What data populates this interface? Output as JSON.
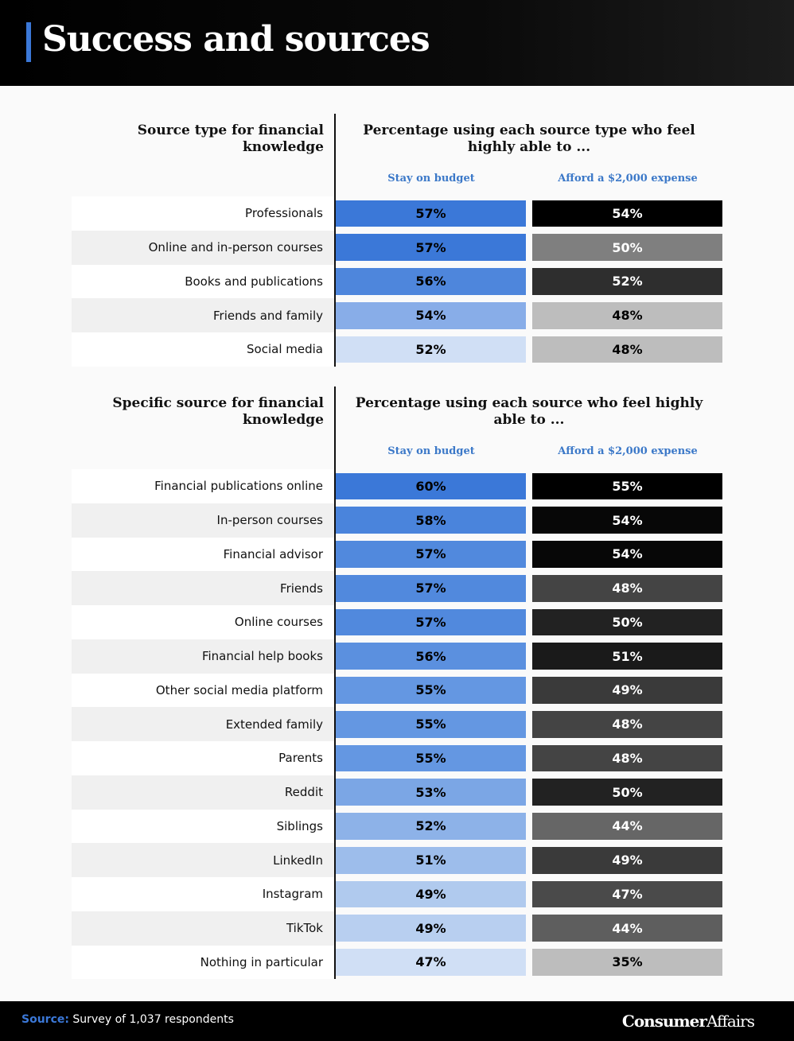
{
  "header": {
    "title": "Success and sources"
  },
  "sections": [
    {
      "label_header": "Source type for financial knowledge",
      "value_header": "Percentage using each source type who feel highly able to ...",
      "columns": [
        "Stay on budget",
        "Afford a $2,000 expense"
      ],
      "rows": [
        {
          "label": "Professionals",
          "cells": [
            {
              "text": "57%",
              "fill": "#3b78d8",
              "ink": "#000000"
            },
            {
              "text": "54%",
              "fill": "#000000",
              "ink": "#ffffff"
            }
          ]
        },
        {
          "label": "Online and in-person courses",
          "cells": [
            {
              "text": "57%",
              "fill": "#3b78d8",
              "ink": "#000000"
            },
            {
              "text": "50%",
              "fill": "#7f7f7f",
              "ink": "#ffffff"
            }
          ]
        },
        {
          "label": "Books and publications",
          "cells": [
            {
              "text": "56%",
              "fill": "#4e86dc",
              "ink": "#000000"
            },
            {
              "text": "52%",
              "fill": "#2e2e2e",
              "ink": "#ffffff"
            }
          ]
        },
        {
          "label": "Friends and family",
          "cells": [
            {
              "text": "54%",
              "fill": "#88ade8",
              "ink": "#000000"
            },
            {
              "text": "48%",
              "fill": "#bdbdbd",
              "ink": "#000000"
            }
          ]
        },
        {
          "label": "Social media",
          "cells": [
            {
              "text": "52%",
              "fill": "#d0dff5",
              "ink": "#000000"
            },
            {
              "text": "48%",
              "fill": "#bdbdbd",
              "ink": "#000000"
            }
          ]
        }
      ]
    },
    {
      "label_header": "Specific source for financial knowledge",
      "value_header": "Percentage using each source who feel highly able to ...",
      "columns": [
        "Stay on budget",
        "Afford a $2,000 expense"
      ],
      "rows": [
        {
          "label": "Financial publications online",
          "cells": [
            {
              "text": "60%",
              "fill": "#3b78d8",
              "ink": "#000000"
            },
            {
              "text": "55%",
              "fill": "#000000",
              "ink": "#ffffff"
            }
          ]
        },
        {
          "label": "In-person courses",
          "cells": [
            {
              "text": "58%",
              "fill": "#4a84dc",
              "ink": "#000000"
            },
            {
              "text": "54%",
              "fill": "#070707",
              "ink": "#ffffff"
            }
          ]
        },
        {
          "label": "Financial advisor",
          "cells": [
            {
              "text": "57%",
              "fill": "#5189dd",
              "ink": "#000000"
            },
            {
              "text": "54%",
              "fill": "#070707",
              "ink": "#ffffff"
            }
          ]
        },
        {
          "label": "Friends",
          "cells": [
            {
              "text": "57%",
              "fill": "#5189dd",
              "ink": "#000000"
            },
            {
              "text": "48%",
              "fill": "#444444",
              "ink": "#ffffff"
            }
          ]
        },
        {
          "label": "Online courses",
          "cells": [
            {
              "text": "57%",
              "fill": "#5189dd",
              "ink": "#000000"
            },
            {
              "text": "50%",
              "fill": "#222222",
              "ink": "#ffffff"
            }
          ]
        },
        {
          "label": "Financial help books",
          "cells": [
            {
              "text": "56%",
              "fill": "#5b90df",
              "ink": "#000000"
            },
            {
              "text": "51%",
              "fill": "#1a1a1a",
              "ink": "#ffffff"
            }
          ]
        },
        {
          "label": "Other social media platform",
          "cells": [
            {
              "text": "55%",
              "fill": "#6497e2",
              "ink": "#000000"
            },
            {
              "text": "49%",
              "fill": "#3a3a3a",
              "ink": "#ffffff"
            }
          ]
        },
        {
          "label": "Extended family",
          "cells": [
            {
              "text": "55%",
              "fill": "#6497e2",
              "ink": "#000000"
            },
            {
              "text": "48%",
              "fill": "#444444",
              "ink": "#ffffff"
            }
          ]
        },
        {
          "label": "Parents",
          "cells": [
            {
              "text": "55%",
              "fill": "#6497e2",
              "ink": "#000000"
            },
            {
              "text": "48%",
              "fill": "#444444",
              "ink": "#ffffff"
            }
          ]
        },
        {
          "label": "Reddit",
          "cells": [
            {
              "text": "53%",
              "fill": "#7ba6e5",
              "ink": "#000000"
            },
            {
              "text": "50%",
              "fill": "#222222",
              "ink": "#ffffff"
            }
          ]
        },
        {
          "label": "Siblings",
          "cells": [
            {
              "text": "52%",
              "fill": "#8db2e8",
              "ink": "#000000"
            },
            {
              "text": "44%",
              "fill": "#666666",
              "ink": "#ffffff"
            }
          ]
        },
        {
          "label": "LinkedIn",
          "cells": [
            {
              "text": "51%",
              "fill": "#9dbdeb",
              "ink": "#000000"
            },
            {
              "text": "49%",
              "fill": "#3a3a3a",
              "ink": "#ffffff"
            }
          ]
        },
        {
          "label": "Instagram",
          "cells": [
            {
              "text": "49%",
              "fill": "#b0caee",
              "ink": "#000000"
            },
            {
              "text": "47%",
              "fill": "#4a4a4a",
              "ink": "#ffffff"
            }
          ]
        },
        {
          "label": "TikTok",
          "cells": [
            {
              "text": "49%",
              "fill": "#b8cff0",
              "ink": "#000000"
            },
            {
              "text": "44%",
              "fill": "#5e5e5e",
              "ink": "#ffffff"
            }
          ]
        },
        {
          "label": "Nothing in particular",
          "cells": [
            {
              "text": "47%",
              "fill": "#d0dff5",
              "ink": "#000000"
            },
            {
              "text": "35%",
              "fill": "#bdbdbd",
              "ink": "#000000"
            }
          ]
        }
      ]
    }
  ],
  "footer": {
    "source_label": "Source:",
    "source_text": "Survey of 1,037 respondents",
    "logo_bold": "Consumer",
    "logo_regular": "Affairs"
  }
}
